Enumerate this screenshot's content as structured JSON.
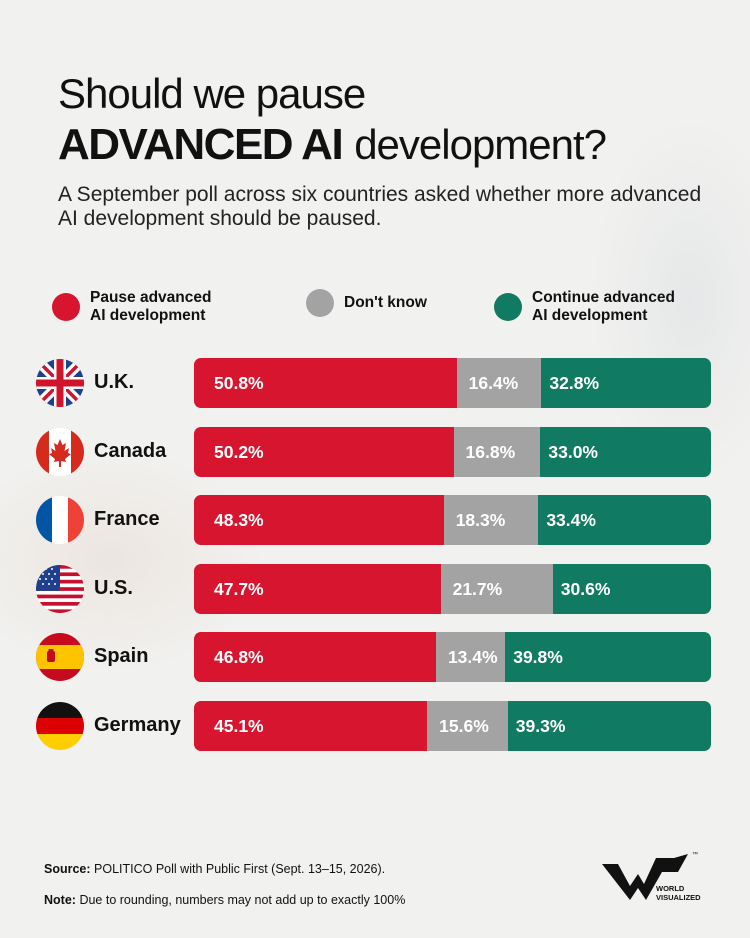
{
  "title": {
    "line1": "Should we pause",
    "bold": "ADVANCED AI",
    "rest": "development?"
  },
  "subtitle": "A September poll across six countries asked whether more advanced AI development should be paused.",
  "legend": [
    {
      "label": "Pause advanced\nAI development",
      "color": "#d7152f"
    },
    {
      "label": "Don't know",
      "color": "#a3a3a3"
    },
    {
      "label": "Continue advanced\nAI development",
      "color": "#117a62"
    }
  ],
  "chart_data": {
    "type": "bar",
    "orientation": "horizontal",
    "stacked": true,
    "categories": [
      "U.K.",
      "Canada",
      "France",
      "U.S.",
      "Spain",
      "Germany"
    ],
    "series": [
      {
        "name": "Pause advanced AI development",
        "values": [
          50.8,
          50.2,
          48.3,
          47.7,
          46.8,
          45.1
        ],
        "color": "#d7152f"
      },
      {
        "name": "Don't know",
        "values": [
          16.4,
          16.8,
          18.3,
          21.7,
          13.4,
          15.6
        ],
        "color": "#a3a3a3"
      },
      {
        "name": "Continue advanced AI development",
        "values": [
          32.8,
          33.0,
          33.4,
          30.6,
          39.8,
          39.3
        ],
        "color": "#117a62"
      }
    ],
    "unit": "%",
    "legend_position": "top"
  },
  "flags": [
    "uk-flag-icon",
    "canada-flag-icon",
    "france-flag-icon",
    "us-flag-icon",
    "spain-flag-icon",
    "germany-flag-icon"
  ],
  "source": {
    "label": "Source:",
    "text": "POLITICO Poll with Public First (Sept. 13–15, 2026)."
  },
  "note": {
    "label": "Note:",
    "text": "Due to rounding, numbers may not add up to exactly 100%"
  },
  "logo": {
    "text": "WORLD\nVISUALIZED",
    "tm": "™"
  }
}
